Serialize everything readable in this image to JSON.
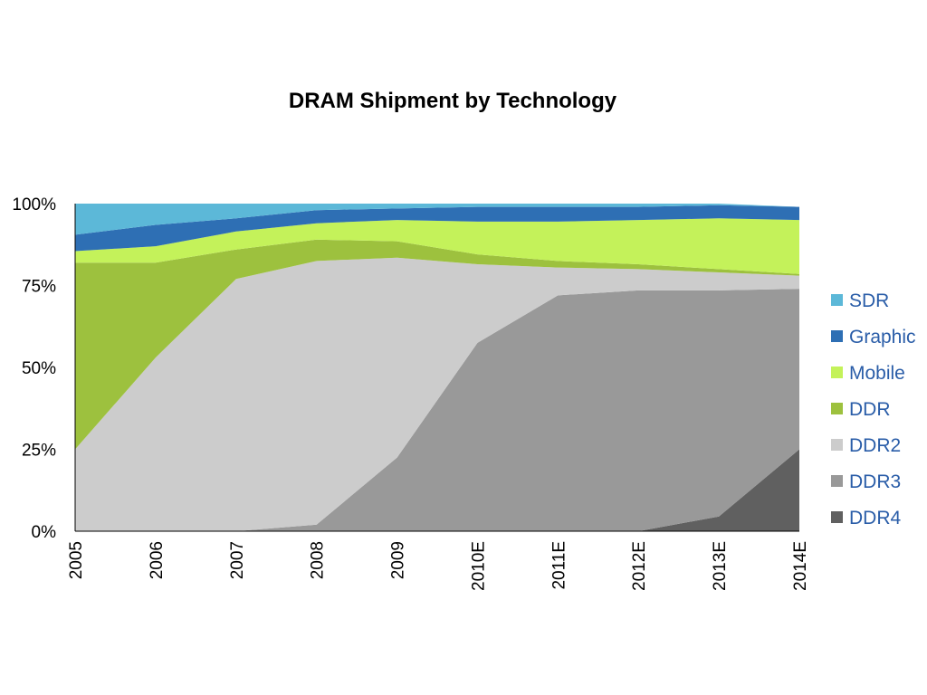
{
  "chart_data": {
    "type": "area",
    "stacked": "percent",
    "title": "DRAM Shipment by Technology",
    "xlabel": "",
    "ylabel": "",
    "categories": [
      "2005",
      "2006",
      "2007",
      "2008",
      "2009",
      "2010E",
      "2011E",
      "2012E",
      "2013E",
      "2014E"
    ],
    "y_tick_labels": [
      "0%",
      "25%",
      "50%",
      "75%",
      "100%"
    ],
    "ylim": [
      0,
      100
    ],
    "grid": false,
    "legend_position": "right",
    "series": [
      {
        "name": "DDR4",
        "color": "#606060",
        "values": [
          0,
          0,
          0,
          0,
          0,
          0,
          0,
          0,
          4.5,
          25
        ]
      },
      {
        "name": "DDR3",
        "color": "#999999",
        "values": [
          0,
          0,
          0,
          2,
          22.5,
          57.5,
          72,
          73.5,
          69,
          49
        ]
      },
      {
        "name": "DDR2",
        "color": "#cccccc",
        "values": [
          25,
          53,
          77,
          80.5,
          61,
          24,
          8.5,
          6.5,
          5.5,
          4
        ]
      },
      {
        "name": "DDR",
        "color": "#9dc13e",
        "values": [
          57,
          29,
          9,
          6.5,
          5,
          3,
          2,
          1.5,
          1,
          0.5
        ]
      },
      {
        "name": "Mobile",
        "color": "#c4f25a",
        "values": [
          3.5,
          5,
          5.5,
          5,
          6.5,
          10,
          12,
          13.5,
          15.5,
          16.5
        ]
      },
      {
        "name": "Graphic",
        "color": "#2e6fb4",
        "values": [
          5,
          6.5,
          4,
          4,
          3.5,
          4.5,
          4.5,
          4,
          4,
          4
        ]
      },
      {
        "name": "SDR",
        "color": "#5cb8d8",
        "values": [
          9.5,
          6.5,
          4.5,
          2,
          1.5,
          1,
          1,
          1,
          0.5,
          0
        ]
      }
    ]
  }
}
